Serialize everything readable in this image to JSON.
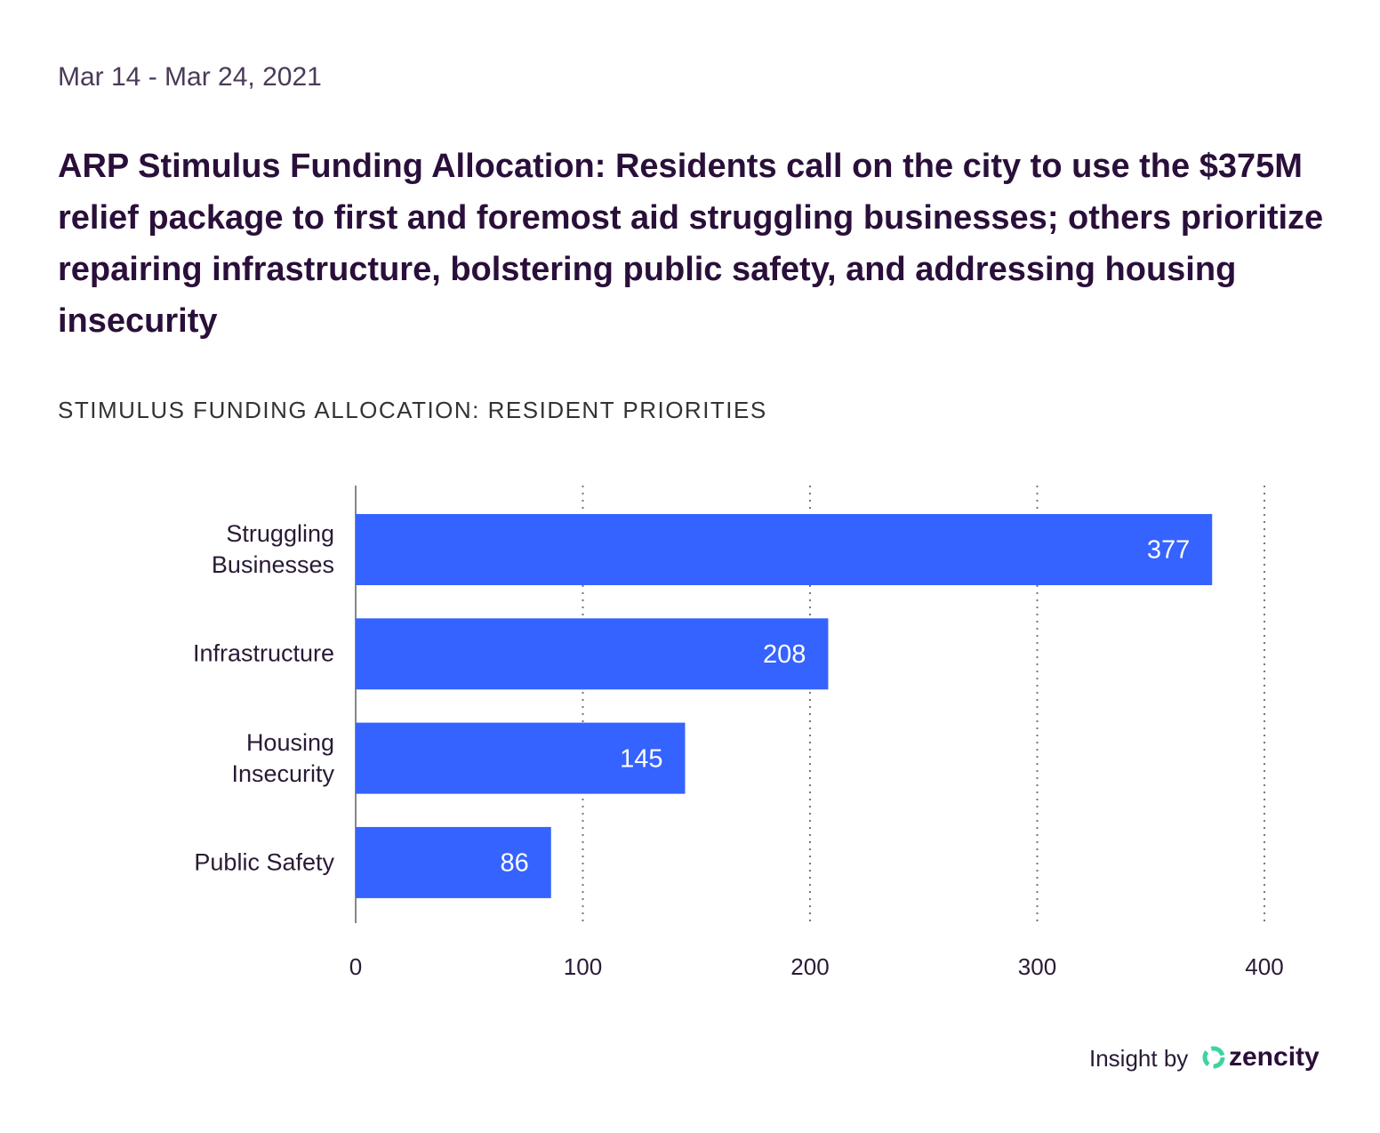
{
  "chart_data": {
    "type": "hbar",
    "date_range": "Mar 14 - Mar 24, 2021",
    "title": "ARP Stimulus Funding Allocation: Residents call on the city to use the $375M relief package to first and foremost aid struggling businesses; others prioritize repairing infrastructure, bolstering public safety, and addressing housing insecurity",
    "subtitle": "STIMULUS FUNDING ALLOCATION: RESIDENT PRIORITIES",
    "categories": [
      "Struggling Businesses",
      "Infrastructure",
      "Housing Insecurity",
      "Public Safety"
    ],
    "values": [
      377,
      208,
      145,
      86
    ],
    "color": "#3563ff",
    "xlim": [
      0,
      400
    ],
    "xticks": [
      0,
      100,
      200,
      300,
      400
    ],
    "grid": true
  },
  "footer": {
    "prefix": "Insight by",
    "brand": "zencity"
  }
}
